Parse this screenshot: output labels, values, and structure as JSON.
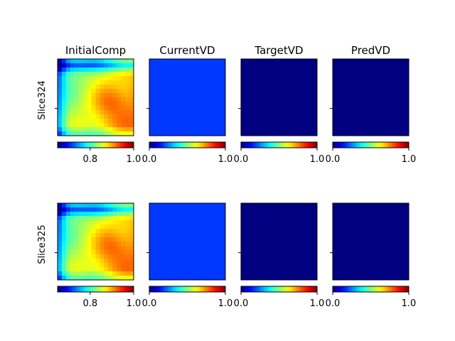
{
  "chart_data": {
    "type": "heatmap",
    "layout": {
      "rows": 2,
      "cols": 4
    },
    "colormap": "jet",
    "column_titles": [
      "InitialComp",
      "CurrentVD",
      "TargetVD",
      "PredVD"
    ],
    "row_labels": [
      "Slice324",
      "Slice325"
    ],
    "panels": [
      {
        "row": 0,
        "col": 0,
        "title": "InitialComp",
        "ylabel": "Slice324",
        "kind": "gradient",
        "value_range": [
          0.65,
          1.0
        ],
        "colorbar_ticks": [
          {
            "value": 0.8,
            "label": "0.8"
          },
          {
            "value": 1.0,
            "label": "1.0"
          }
        ]
      },
      {
        "row": 0,
        "col": 1,
        "title": "CurrentVD",
        "kind": "uniform",
        "fill_value": 0.18,
        "value_range": [
          0.0,
          1.0
        ],
        "colorbar_ticks": [
          {
            "value": 0.0,
            "label": "0.0"
          },
          {
            "value": 1.0,
            "label": "1.0"
          }
        ]
      },
      {
        "row": 0,
        "col": 2,
        "title": "TargetVD",
        "kind": "uniform",
        "fill_value": 0.0,
        "value_range": [
          0.0,
          1.0
        ],
        "colorbar_ticks": [
          {
            "value": 0.0,
            "label": "0.0"
          },
          {
            "value": 1.0,
            "label": "1.0"
          }
        ]
      },
      {
        "row": 0,
        "col": 3,
        "title": "PredVD",
        "kind": "uniform",
        "fill_value": 0.0,
        "value_range": [
          0.0,
          1.0
        ],
        "colorbar_ticks": [
          {
            "value": 0.0,
            "label": "0.0"
          },
          {
            "value": 1.0,
            "label": "1.0"
          }
        ]
      },
      {
        "row": 1,
        "col": 0,
        "title": "",
        "ylabel": "Slice325",
        "kind": "gradient",
        "value_range": [
          0.65,
          1.0
        ],
        "colorbar_ticks": [
          {
            "value": 0.8,
            "label": "0.8"
          },
          {
            "value": 1.0,
            "label": "1.0"
          }
        ]
      },
      {
        "row": 1,
        "col": 1,
        "title": "",
        "kind": "uniform",
        "fill_value": 0.18,
        "value_range": [
          0.0,
          1.0
        ],
        "colorbar_ticks": [
          {
            "value": 0.0,
            "label": "0.0"
          },
          {
            "value": 1.0,
            "label": "1.0"
          }
        ]
      },
      {
        "row": 1,
        "col": 2,
        "title": "",
        "kind": "uniform",
        "fill_value": 0.0,
        "value_range": [
          0.0,
          1.0
        ],
        "colorbar_ticks": [
          {
            "value": 0.0,
            "label": "0.0"
          },
          {
            "value": 1.0,
            "label": "1.0"
          }
        ]
      },
      {
        "row": 1,
        "col": 3,
        "title": "",
        "kind": "uniform",
        "fill_value": 0.0,
        "value_range": [
          0.0,
          1.0
        ],
        "colorbar_ticks": [
          {
            "value": 0.0,
            "label": "0.0"
          },
          {
            "value": 1.0,
            "label": "1.0"
          }
        ]
      }
    ]
  }
}
